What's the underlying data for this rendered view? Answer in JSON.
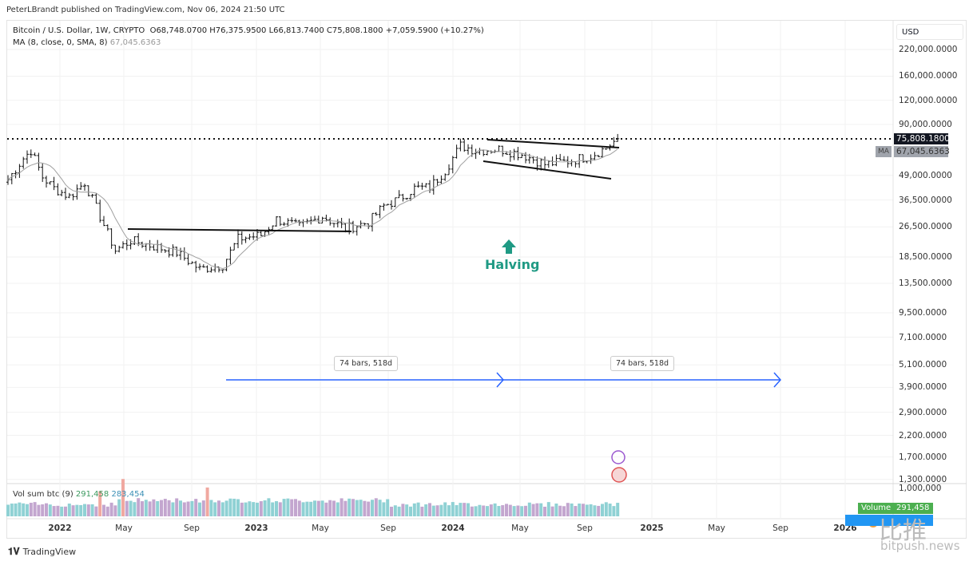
{
  "header": {
    "published": "PeterLBrandt published on TradingView.com, Nov 06, 2024 21:50 UTC"
  },
  "legend": {
    "symbol": "Bitcoin / U.S. Dollar, 1W, CRYPTO",
    "ohlc": "O68,748.0700  H76,375.9500  L66,813.7400  C75,808.1800  +7,059.5900 (+10.27%)",
    "ma_label": "MA (8, close, 0, SMA, 8)",
    "ma_value": "67,045.6363"
  },
  "price_axis": {
    "currency": "USD",
    "ticks": [
      "220,000.0000",
      "160,000.0000",
      "120,000.0000",
      "90,000.0000",
      "49,000.0000",
      "36,500.0000",
      "26,500.0000",
      "18,500.0000",
      "13,500.0000",
      "9,500.0000",
      "7,100.0000",
      "5,100.0000",
      "3,900.0000",
      "2,900.0000",
      "2,200.0000",
      "1,700.0000",
      "1,300.0000"
    ],
    "tick_values": [
      220000,
      160000,
      120000,
      90000,
      49000,
      36500,
      26500,
      18500,
      13500,
      9500,
      7100,
      5100,
      3900,
      2900,
      2200,
      1700,
      1300
    ],
    "last_price": "75,808.1800",
    "last_value": 75808,
    "ma_tag": "MA",
    "ma_price": "67,045.6363",
    "volume_tick": "1,000,000"
  },
  "time_axis": {
    "labels": [
      {
        "t": "2022",
        "yr": true
      },
      {
        "t": "May"
      },
      {
        "t": "Sep"
      },
      {
        "t": "2023",
        "yr": true
      },
      {
        "t": "May"
      },
      {
        "t": "Sep"
      },
      {
        "t": "2024",
        "yr": true
      },
      {
        "t": "May"
      },
      {
        "t": "Sep"
      },
      {
        "t": "2025",
        "yr": true
      },
      {
        "t": "May"
      },
      {
        "t": "Sep"
      },
      {
        "t": "2026",
        "yr": true
      }
    ]
  },
  "price_path": [
    [
      0,
      46600
    ],
    [
      4,
      60000
    ],
    [
      6,
      66000
    ],
    [
      9,
      48000
    ],
    [
      12,
      42000
    ],
    [
      16,
      38000
    ],
    [
      20,
      45000
    ],
    [
      24,
      30000
    ],
    [
      28,
      20000
    ],
    [
      32,
      22500
    ],
    [
      38,
      21000
    ],
    [
      44,
      19500
    ],
    [
      50,
      16000
    ],
    [
      56,
      16800
    ],
    [
      60,
      23000
    ],
    [
      66,
      24000
    ],
    [
      70,
      29000
    ],
    [
      76,
      26500
    ],
    [
      82,
      30000
    ],
    [
      88,
      26000
    ],
    [
      94,
      28000
    ],
    [
      98,
      34000
    ],
    [
      102,
      37000
    ],
    [
      106,
      42000
    ],
    [
      110,
      42500
    ],
    [
      114,
      52000
    ],
    [
      118,
      70000
    ],
    [
      122,
      66000
    ],
    [
      128,
      67000
    ],
    [
      134,
      63000
    ],
    [
      140,
      56000
    ],
    [
      146,
      58000
    ],
    [
      152,
      62000
    ],
    [
      156,
      68000
    ],
    [
      159,
      75808
    ]
  ],
  "annotations": {
    "halving": "Halving",
    "measure1": "74 bars, 518d",
    "measure2": "74 bars, 518d"
  },
  "volume": {
    "label": "Vol sum btc (9)",
    "v1": "291,458",
    "v2": "283,454",
    "badge_label": "Volume",
    "badge_value": "291,458"
  },
  "footer": {
    "brand": "TradingView"
  },
  "watermark": {
    "cn": "比推",
    "site": "bitpush.news"
  },
  "colors": {
    "up": "#8fd1d4",
    "down": "#c3a6cf",
    "spike": "#f0a8a0",
    "arrow": "#2962ff",
    "halving": "#1f9a84"
  }
}
